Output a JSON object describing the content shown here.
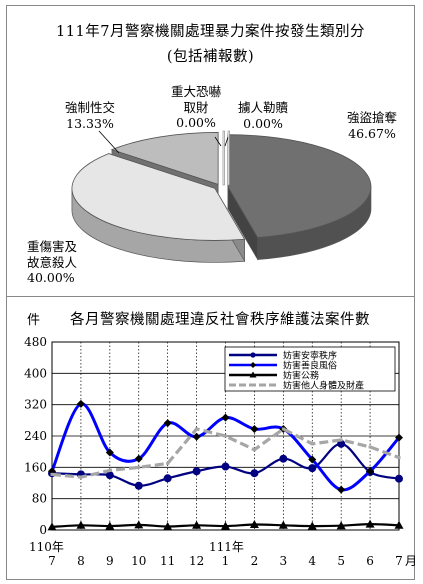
{
  "pie_title": "111年7月警察機關處理暴力案件按發生類別分",
  "pie_subtitle": "(包括補報數)",
  "line_title": "各月警察機關處理違反社會秩序維護法案件數",
  "line_unit": "件",
  "month_unit": "月",
  "year_labels": [
    "110年",
    "111年"
  ],
  "chart_data": [
    {
      "type": "pie",
      "title": "111年7月警察機關處理暴力案件按發生類別分",
      "subtitle": "(包括補報數)",
      "style": "3d-exploded",
      "slices": [
        {
          "label": "強盜搶奪",
          "value": 46.67,
          "display": "46.67%",
          "color": "#707070"
        },
        {
          "label": "重傷害及故意殺人",
          "value": 40.0,
          "display": "40.00%",
          "color": "#e6e6e6"
        },
        {
          "label": "強制性交",
          "value": 13.33,
          "display": "13.33%",
          "color": "#bdbdbd"
        },
        {
          "label": "重大恐嚇取財",
          "value": 0.0,
          "display": "0.00%",
          "color": "#ffffff"
        },
        {
          "label": "擄人勒贖",
          "value": 0.0,
          "display": "0.00%",
          "color": "#ffffff"
        }
      ]
    },
    {
      "type": "line",
      "title": "各月警察機關處理違反社會秩序維護法案件數",
      "ylabel": "件",
      "xlabel": "月",
      "categories": [
        "7",
        "8",
        "9",
        "10",
        "11",
        "12",
        "1",
        "2",
        "3",
        "4",
        "5",
        "6",
        "7"
      ],
      "ylim": [
        0,
        480
      ],
      "yticks": [
        0,
        80,
        160,
        240,
        320,
        400,
        480
      ],
      "grid": true,
      "legend_position": "top-right",
      "series": [
        {
          "name": "妨害安寧秩序",
          "values": [
            145,
            142,
            140,
            113,
            132,
            150,
            162,
            145,
            182,
            158,
            220,
            148,
            131
          ],
          "color": "#000080",
          "style": "solid-dot"
        },
        {
          "name": "妨害善良風俗",
          "values": [
            150,
            322,
            198,
            182,
            273,
            238,
            287,
            258,
            258,
            180,
            103,
            150,
            236
          ],
          "color": "#0000ff",
          "style": "solid-diamond"
        },
        {
          "name": "妨害公務",
          "values": [
            8,
            12,
            10,
            13,
            9,
            12,
            10,
            14,
            12,
            10,
            11,
            15,
            12
          ],
          "color": "#000000",
          "style": "solid-triangle"
        },
        {
          "name": "妨害他人身體及財產",
          "values": [
            142,
            135,
            152,
            160,
            170,
            258,
            240,
            205,
            258,
            220,
            230,
            212,
            185
          ],
          "color": "#a6a6a6",
          "style": "dashed"
        }
      ]
    }
  ]
}
